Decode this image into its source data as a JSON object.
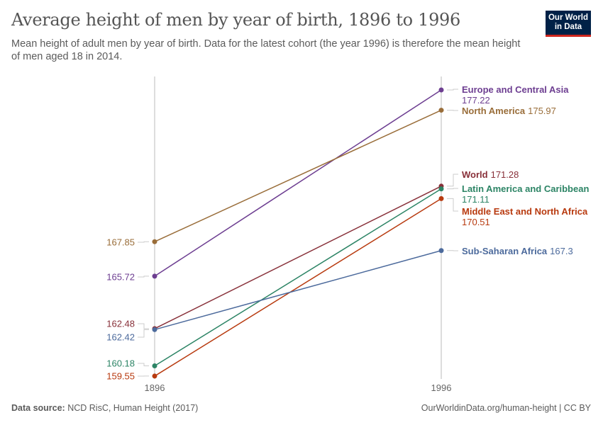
{
  "header": {
    "title": "Average height of men by year of birth, 1896 to 1996",
    "subtitle": "Mean height of adult men by year of birth. Data for the latest cohort (the year 1996) is therefore the mean height of men aged 18 in 2014.",
    "logo": "Our World in Data"
  },
  "footer": {
    "source_label": "Data source:",
    "source": "NCD RisC, Human Height (2017)",
    "url": "OurWorldinData.org/human-height | CC BY"
  },
  "chart_data": {
    "type": "slope",
    "x": [
      "1896",
      "1996"
    ],
    "series": [
      {
        "name": "Europe and Central Asia",
        "values": [
          165.72,
          177.22
        ],
        "start_label": "165.72",
        "end_label": "177.22",
        "color": "#6d3e91"
      },
      {
        "name": "North America",
        "values": [
          167.85,
          175.97
        ],
        "start_label": "167.85",
        "end_label": "175.97",
        "color": "#996d39"
      },
      {
        "name": "World",
        "values": [
          162.48,
          171.28
        ],
        "start_label": "162.48",
        "end_label": "171.28",
        "color": "#883039"
      },
      {
        "name": "Latin America and Caribbean",
        "values": [
          160.18,
          171.11
        ],
        "start_label": "160.18",
        "end_label": "171.11",
        "color": "#2c8465"
      },
      {
        "name": "Middle East and North Africa",
        "values": [
          159.55,
          170.51
        ],
        "start_label": "159.55",
        "end_label": "170.51",
        "color": "#b83a0f"
      },
      {
        "name": "Sub-Saharan Africa",
        "values": [
          162.42,
          167.3
        ],
        "start_label": "162.42",
        "end_label": "167.3",
        "color": "#4c6a9c"
      }
    ]
  }
}
